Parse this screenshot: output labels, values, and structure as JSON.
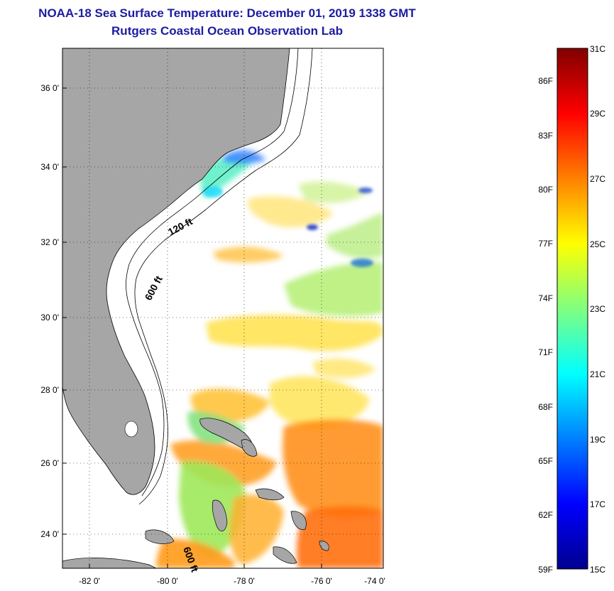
{
  "title": {
    "line1": "NOAA-18 Sea Surface Temperature:  December 01, 2019 1338 GMT",
    "line2": "Rutgers Coastal Ocean Observation Lab"
  },
  "map": {
    "lat_ticks": [
      "36 0'",
      "34 0'",
      "32 0'",
      "30 0'",
      "28 0'",
      "26 0'",
      "24 0'"
    ],
    "lon_ticks": [
      "-82 0'",
      "-80 0'",
      "-78 0'",
      "-76 0'",
      "-74 0'"
    ],
    "isobath_labels": [
      "120 ft",
      "600 ft",
      "600 ft"
    ],
    "land_color": "#a6a6a6",
    "ocean_color": "#ffffff"
  },
  "colorbar": {
    "celsius_labels": [
      "31C",
      "29C",
      "27C",
      "25C",
      "23C",
      "21C",
      "19C",
      "17C",
      "15C"
    ],
    "fahrenheit_labels": [
      "86F",
      "83F",
      "80F",
      "77F",
      "74F",
      "71F",
      "68F",
      "65F",
      "62F",
      "59F"
    ],
    "colormap": [
      "#00008f",
      "#0000ff",
      "#0080ff",
      "#00ffff",
      "#80ff80",
      "#ffff00",
      "#ff8000",
      "#ff0000",
      "#800000"
    ]
  }
}
